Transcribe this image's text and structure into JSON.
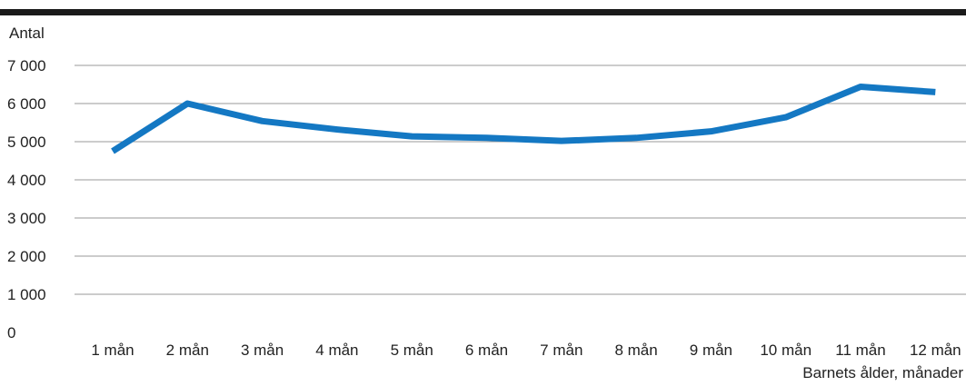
{
  "chart_data": {
    "type": "line",
    "ylabel": "Antal",
    "xlabel": "Barnets ålder, månader",
    "categories": [
      "1 mån",
      "2 mån",
      "3 mån",
      "4 mån",
      "5 mån",
      "6 mån",
      "7 mån",
      "8 mån",
      "9 mån",
      "10 mån",
      "11 mån",
      "12 mån"
    ],
    "series": [
      {
        "values": [
          4750,
          6000,
          5540,
          5320,
          5140,
          5100,
          5020,
          5100,
          5270,
          5640,
          6440,
          6300
        ]
      }
    ],
    "ylim": [
      0,
      7000
    ],
    "yticks": [
      0,
      1000,
      2000,
      3000,
      4000,
      5000,
      6000,
      7000
    ],
    "ytick_labels": [
      "0",
      "1 000",
      "2 000",
      "3 000",
      "4 000",
      "5 000",
      "6 000",
      "7 000"
    ],
    "grid": true,
    "line_color": "#1478c3",
    "top_rule_color": "#1a1a1a",
    "grid_color": "#9a9a9a"
  }
}
